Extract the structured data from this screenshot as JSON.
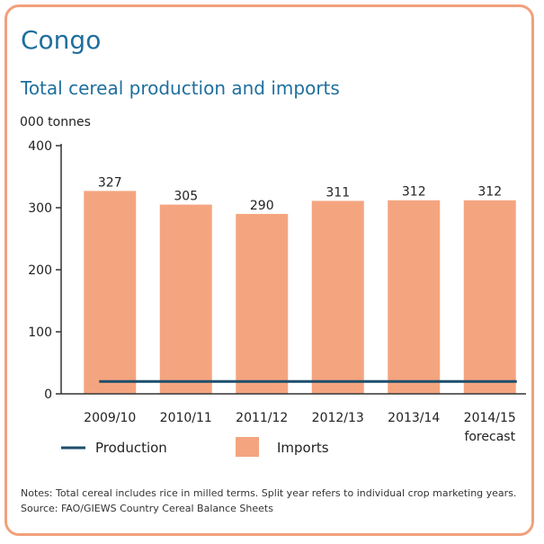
{
  "header": {
    "country": "Congo",
    "subtitle": "Total cereal production and imports"
  },
  "chart_data": {
    "type": "bar",
    "title": "Total cereal production and imports",
    "ylabel": "000 tonnes",
    "ylim": [
      0,
      400
    ],
    "yticks": [
      0,
      100,
      200,
      300,
      400
    ],
    "categories": [
      "2009/10",
      "2010/11",
      "2011/12",
      "2012/13",
      "2013/14",
      "2014/15"
    ],
    "category_sublabels": [
      "",
      "",
      "",
      "",
      "",
      "forecast"
    ],
    "series": [
      {
        "name": "Imports",
        "kind": "bar",
        "values": [
          327,
          305,
          290,
          311,
          312,
          312
        ]
      },
      {
        "name": "Production",
        "kind": "line",
        "values": [
          20,
          20,
          20,
          20,
          20,
          20
        ]
      }
    ],
    "data_labels": [
      "327",
      "305",
      "290",
      "311",
      "312",
      "312"
    ],
    "legend": {
      "position": "bottom",
      "items": [
        "Production",
        "Imports"
      ]
    },
    "colors": {
      "bar": "#f4a57f",
      "line": "#1d4e6b",
      "axis": "#333333"
    },
    "grid": false
  },
  "notes": {
    "line1": "Notes: Total cereal includes rice in milled terms. Split year refers to individual crop marketing years.",
    "line2": "Source: FAO/GIEWS Country Cereal Balance Sheets"
  },
  "colors": {
    "frame": "#f2a07b",
    "title": "#1f6f9e"
  }
}
